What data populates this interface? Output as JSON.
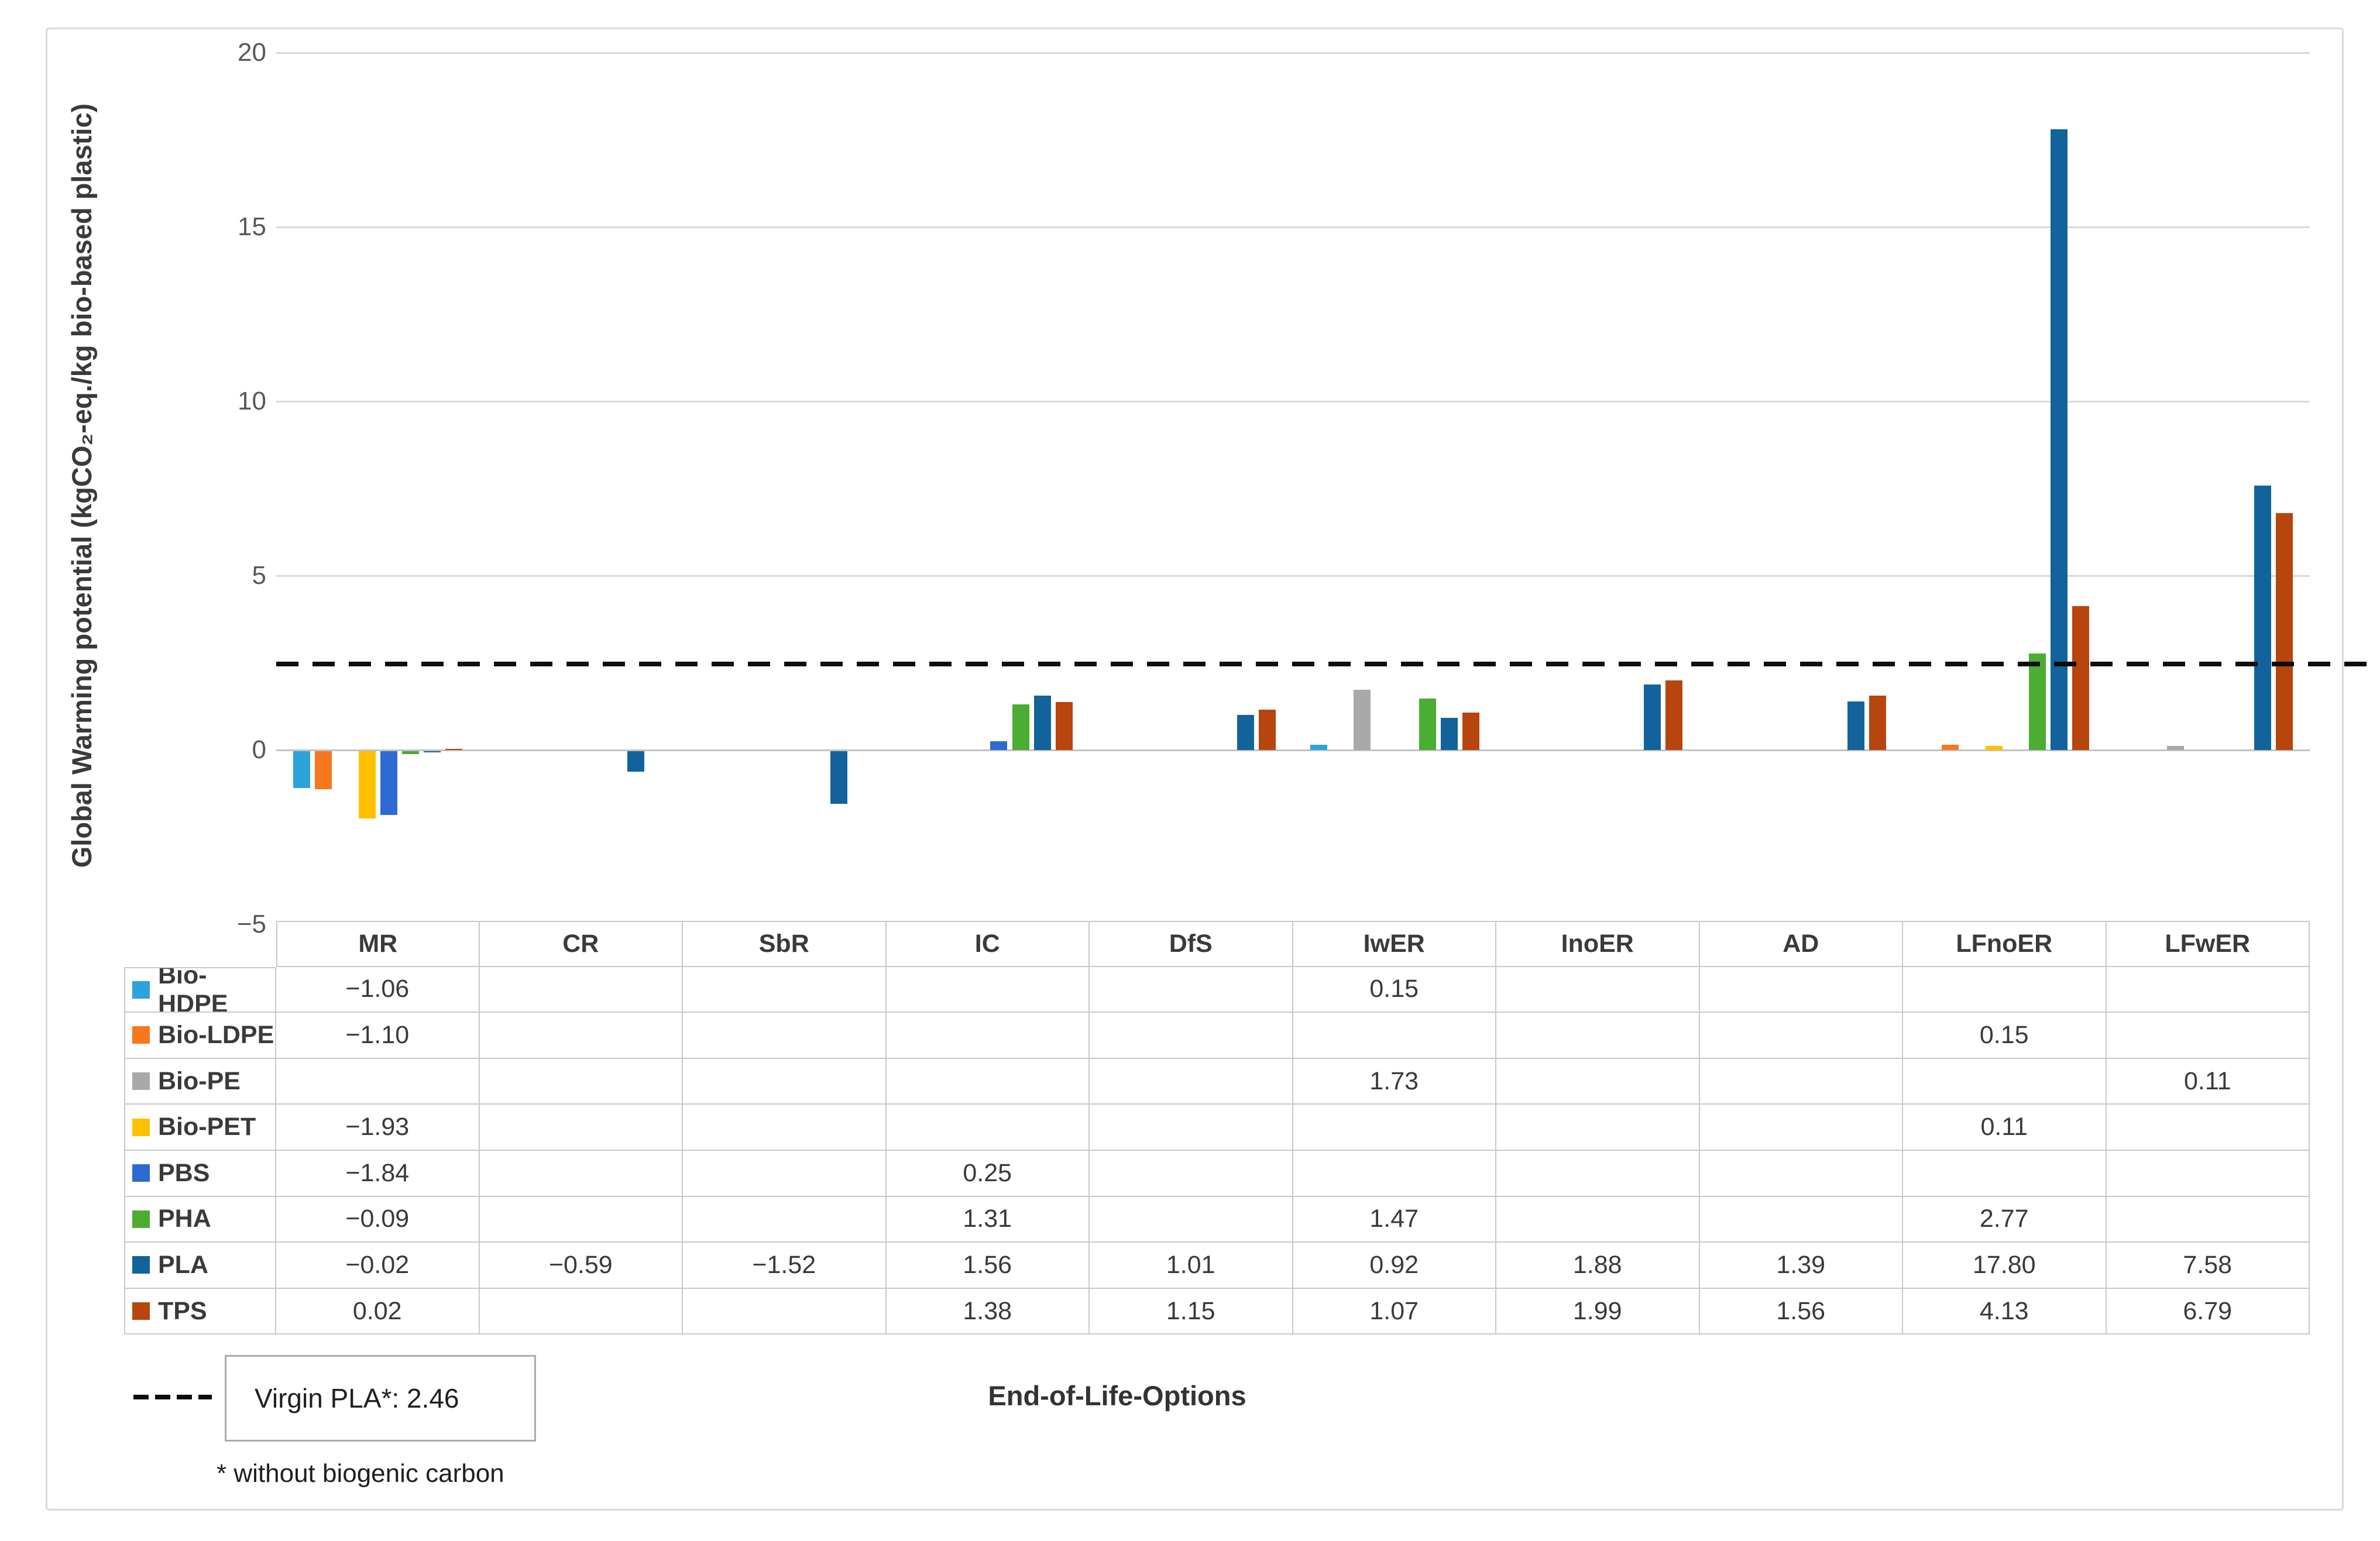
{
  "chart_data": {
    "type": "bar",
    "title": "",
    "xlabel": "End-of-Life-Options",
    "ylabel": "Global Warming potential (kgCO₂-eq./kg bio-based plastic)",
    "categories": [
      "MR",
      "CR",
      "SbR",
      "IC",
      "DfS",
      "IwER",
      "InoER",
      "AD",
      "LFnoER",
      "LFwER"
    ],
    "series": [
      {
        "name": "Bio-HDPE",
        "color": "#2DA2DB",
        "values": [
          -1.06,
          null,
          null,
          null,
          null,
          0.15,
          null,
          null,
          null,
          null
        ]
      },
      {
        "name": "Bio-LDPE",
        "color": "#F8771D",
        "values": [
          -1.1,
          null,
          null,
          null,
          null,
          null,
          null,
          null,
          0.15,
          null
        ]
      },
      {
        "name": "Bio-PE",
        "color": "#A9A9A9",
        "values": [
          null,
          null,
          null,
          null,
          null,
          1.73,
          null,
          null,
          null,
          0.11
        ]
      },
      {
        "name": "Bio-PET",
        "color": "#FFC000",
        "values": [
          -1.93,
          null,
          null,
          null,
          null,
          null,
          null,
          null,
          0.11,
          null
        ]
      },
      {
        "name": "PBS",
        "color": "#2D6BD2",
        "values": [
          -1.84,
          null,
          null,
          0.25,
          null,
          null,
          null,
          null,
          null,
          null
        ]
      },
      {
        "name": "PHA",
        "color": "#4BAD31",
        "values": [
          -0.09,
          null,
          null,
          1.31,
          null,
          1.47,
          null,
          null,
          2.77,
          null
        ]
      },
      {
        "name": "PLA",
        "color": "#12639B",
        "values": [
          -0.02,
          -0.59,
          -1.52,
          1.56,
          1.01,
          0.92,
          1.88,
          1.39,
          17.8,
          7.58
        ]
      },
      {
        "name": "TPS",
        "color": "#B7450E",
        "values": [
          0.02,
          null,
          null,
          1.38,
          1.15,
          1.07,
          1.99,
          1.56,
          4.13,
          6.79
        ]
      }
    ],
    "ylim": [
      -5,
      20
    ],
    "yticks": [
      20,
      15,
      10,
      5,
      0,
      -5
    ],
    "grid": true,
    "legend_position": "table-left",
    "value_decimals": 2,
    "reference_line": {
      "value": 2.46,
      "label": "Virgin PLA*: 2.46",
      "style": "dashed",
      "color": "#000000"
    },
    "annotations": {
      "footnote": "* without biogenic carbon"
    }
  }
}
